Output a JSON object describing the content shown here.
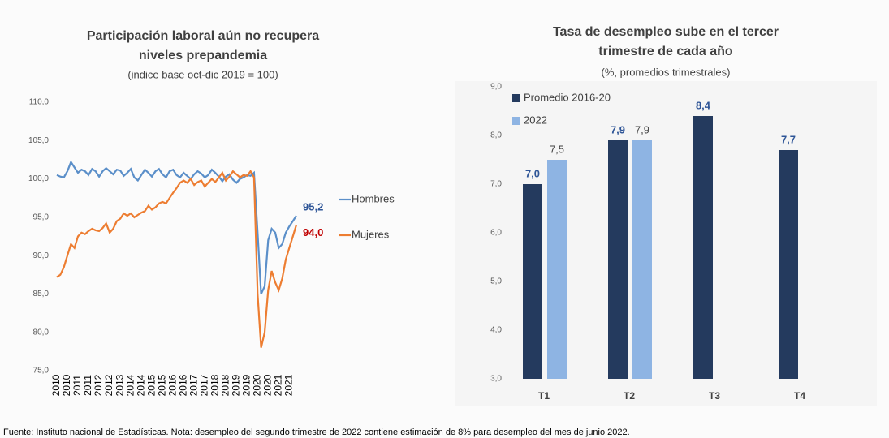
{
  "chart_data": [
    {
      "type": "line",
      "title": [
        "Participación laboral aún no recupera",
        "niveles prepandemia"
      ],
      "subtitle": "(indice base oct-dic 2019 = 100)",
      "categories": [
        "2010",
        null,
        null,
        "2010",
        null,
        null,
        "2011",
        null,
        null,
        "2011",
        null,
        null,
        "2012",
        null,
        null,
        "2012",
        null,
        null,
        "2013",
        null,
        null,
        "2014",
        null,
        null,
        "2014",
        null,
        null,
        "2015",
        null,
        null,
        "2015",
        null,
        null,
        "2016",
        null,
        null,
        "2016",
        null,
        null,
        "2017",
        null,
        null,
        "2017",
        null,
        null,
        "2018",
        null,
        null,
        "2018",
        null,
        null,
        "2019",
        null,
        null,
        "2019",
        null,
        null,
        "2020",
        null,
        null,
        "2020",
        null,
        null,
        "2021",
        null,
        null,
        "2021",
        null,
        null
      ],
      "ylim": [
        75,
        110
      ],
      "yticks": [
        {
          "value": 75,
          "label": "75,0"
        },
        {
          "value": 80,
          "label": "80,0"
        },
        {
          "value": 85,
          "label": "85,0"
        },
        {
          "value": 90,
          "label": "90,0"
        },
        {
          "value": 95,
          "label": "95,0"
        },
        {
          "value": 100,
          "label": "100,0"
        },
        {
          "value": 105,
          "label": "105,0"
        },
        {
          "value": 110,
          "label": "110,0"
        }
      ],
      "grid": false,
      "legend": "right",
      "series": [
        {
          "name": "Hombres",
          "color": "#5b8fc9",
          "values": [
            100.5,
            100.3,
            100.2,
            101,
            102.2,
            101.5,
            100.8,
            101.2,
            101,
            100.5,
            101.3,
            101,
            100.3,
            101,
            101.4,
            101,
            100.6,
            101.2,
            101.1,
            100.4,
            100.8,
            101.3,
            100.2,
            99.8,
            100.5,
            101.2,
            100.8,
            100.3,
            101,
            101.3,
            100.6,
            100.2,
            101,
            101.2,
            100.5,
            100.2,
            100.8,
            100.4,
            100,
            100.6,
            101,
            100.7,
            100.2,
            100.5,
            101.2,
            100.8,
            100.3,
            99.7,
            100.3,
            100.6,
            99.9,
            99.5,
            100,
            100.2,
            100.5,
            100.4,
            100.8,
            93,
            85,
            86,
            92,
            93.5,
            93,
            91,
            91.5,
            93,
            93.8,
            94.5,
            95.2
          ],
          "value_labels": [
            null,
            null,
            null,
            null,
            null,
            null,
            null,
            null,
            null,
            null,
            null,
            null,
            null,
            null,
            null,
            null,
            null,
            null,
            null,
            null,
            null,
            null,
            null,
            null,
            null,
            null,
            null,
            null,
            null,
            null,
            null,
            null,
            null,
            null,
            null,
            null,
            null,
            null,
            null,
            null,
            null,
            null,
            null,
            null,
            null,
            null,
            null,
            null,
            null,
            null,
            null,
            null,
            null,
            null,
            null,
            null,
            null,
            null,
            null,
            null,
            null,
            null,
            null,
            null,
            null,
            null,
            null,
            null,
            "95,2"
          ],
          "label_color": "#2e5597"
        },
        {
          "name": "Mujeres",
          "color": "#ed7d31",
          "values": [
            87.2,
            87.5,
            88.5,
            90,
            91.5,
            91,
            92.5,
            93,
            92.8,
            93.2,
            93.5,
            93.3,
            93.2,
            93.6,
            94.2,
            93,
            93.5,
            94.5,
            94.8,
            95.5,
            95.2,
            95.5,
            95,
            95.3,
            95.6,
            95.8,
            96.5,
            96,
            96.3,
            96.8,
            97,
            96.8,
            97.5,
            98.2,
            98.8,
            99.5,
            99.8,
            99.5,
            100,
            99.2,
            99.6,
            99.8,
            99,
            99.5,
            100,
            99.6,
            100.2,
            100.8,
            99.8,
            100.3,
            101,
            100.6,
            100.2,
            100.5,
            100.4,
            101,
            100.2,
            85,
            78,
            80,
            85.5,
            88,
            86.5,
            85.5,
            87,
            89.5,
            91,
            92.5,
            94
          ],
          "value_labels": [
            null,
            null,
            null,
            null,
            null,
            null,
            null,
            null,
            null,
            null,
            null,
            null,
            null,
            null,
            null,
            null,
            null,
            null,
            null,
            null,
            null,
            null,
            null,
            null,
            null,
            null,
            null,
            null,
            null,
            null,
            null,
            null,
            null,
            null,
            null,
            null,
            null,
            null,
            null,
            null,
            null,
            null,
            null,
            null,
            null,
            null,
            null,
            null,
            null,
            null,
            null,
            null,
            null,
            null,
            null,
            null,
            null,
            null,
            null,
            null,
            null,
            null,
            null,
            null,
            null,
            null,
            null,
            null,
            "94,0"
          ],
          "label_color": "#c00000"
        }
      ]
    },
    {
      "type": "bar",
      "title": [
        "Tasa de desempleo sube en el tercer",
        "trimestre de cada año"
      ],
      "subtitle": "(%, promedios trimestrales)",
      "categories": [
        "T1",
        "T2",
        "T3",
        "T4"
      ],
      "ylim": [
        3,
        9
      ],
      "yticks": [
        {
          "value": 3,
          "label": "3,0"
        },
        {
          "value": 4,
          "label": "4,0"
        },
        {
          "value": 5,
          "label": "5,0"
        },
        {
          "value": 6,
          "label": "6,0"
        },
        {
          "value": 7,
          "label": "7,0"
        },
        {
          "value": 8,
          "label": "8,0"
        },
        {
          "value": 9,
          "label": "9,0"
        }
      ],
      "grid": false,
      "legend": "top-left",
      "series": [
        {
          "name": "Promedio 2016-20",
          "color": "#243a5e",
          "values": [
            7.0,
            7.9,
            8.4,
            7.7
          ],
          "value_labels": [
            "7,0",
            "7,9",
            "8,4",
            "7,7"
          ],
          "label_color": "#2e5597"
        },
        {
          "name": "2022",
          "color": "#8eb4e3",
          "values": [
            7.5,
            7.9,
            null,
            null
          ],
          "value_labels": [
            "7,5",
            "7,9",
            null,
            null
          ],
          "label_color": "#404040"
        }
      ]
    }
  ],
  "footer": "Fuente: Instituto nacional de Estadísticas. Nota: desempleo del segundo trimestre de 2022 contiene estimación de 8% para desempleo del mes de junio 2022."
}
